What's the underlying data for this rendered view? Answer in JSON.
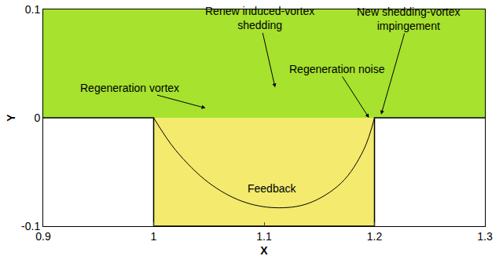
{
  "chart_data": {
    "type": "contour_schematic",
    "xlabel": "X",
    "ylabel": "Y",
    "xlim": [
      0.9,
      1.3
    ],
    "ylim": [
      -0.1,
      0.1
    ],
    "xticks": [
      0.9,
      1,
      1.1,
      1.2,
      1.3
    ],
    "yticks": [
      -0.1,
      0,
      0.1
    ],
    "wall": {
      "x": [
        0.9,
        1,
        1,
        1.2,
        1.2,
        1.3
      ],
      "y": [
        0,
        0,
        -0.1,
        -0.1,
        0,
        0
      ]
    },
    "feedback_curve": {
      "x": [
        1.0,
        1.02,
        1.05,
        1.08,
        1.11,
        1.14,
        1.17,
        1.19,
        1.2
      ],
      "y": [
        0,
        -0.03,
        -0.06,
        -0.077,
        -0.083,
        -0.079,
        -0.06,
        -0.03,
        0
      ]
    },
    "feedback_label": {
      "text": "Feedback",
      "x": 1.107,
      "y": -0.065
    },
    "annotations": [
      {
        "text": "Regeneration vortex",
        "x": 1.047,
        "y": 0.009
      },
      {
        "text": "Renew induced-vortex\nshedding",
        "x": 1.11,
        "y": 0.028
      },
      {
        "text": "Regeneration noise",
        "x": 1.195,
        "y": 0.0
      },
      {
        "text": "New shedding-vortex\nimpingement",
        "x": 1.206,
        "y": 0.003
      }
    ]
  }
}
